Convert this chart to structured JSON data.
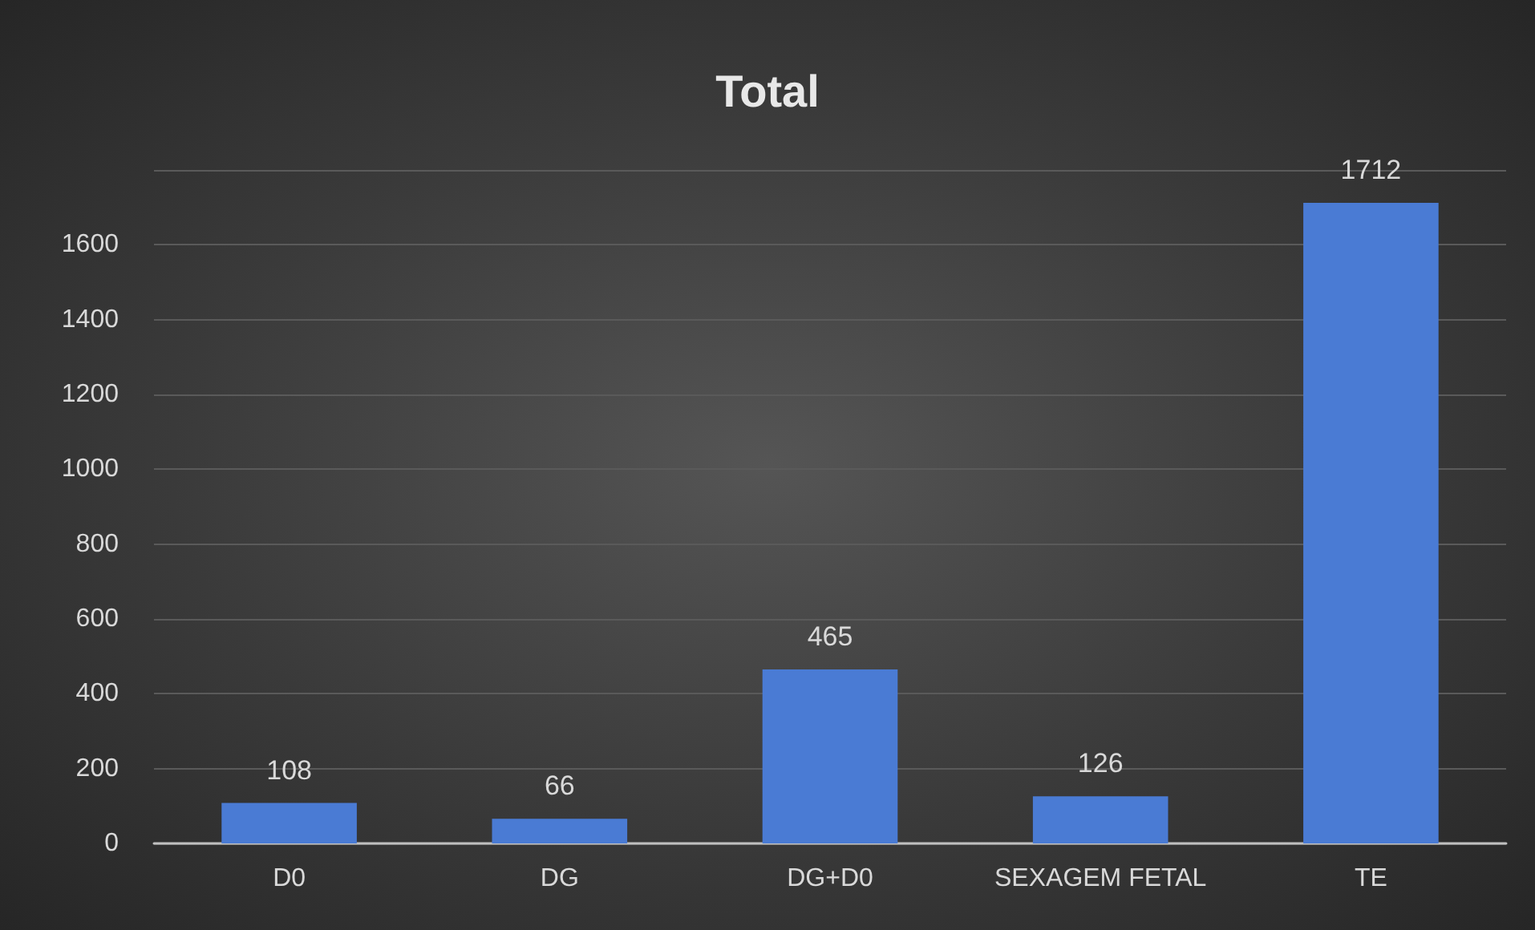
{
  "chart_data": {
    "type": "bar",
    "title": "Total",
    "categories": [
      "D0",
      "DG",
      "DG+D0",
      "SEXAGEM FETAL",
      "TE"
    ],
    "values": [
      108,
      66,
      465,
      126,
      1712
    ],
    "color": "#4a7bd4",
    "ylim": [
      0,
      1800
    ],
    "yticks": [
      0,
      200,
      400,
      600,
      800,
      1000,
      1200,
      1400,
      1600,
      {
        "value": 1800,
        "label": null
      }
    ],
    "grid": "y",
    "data_labels": true
  }
}
